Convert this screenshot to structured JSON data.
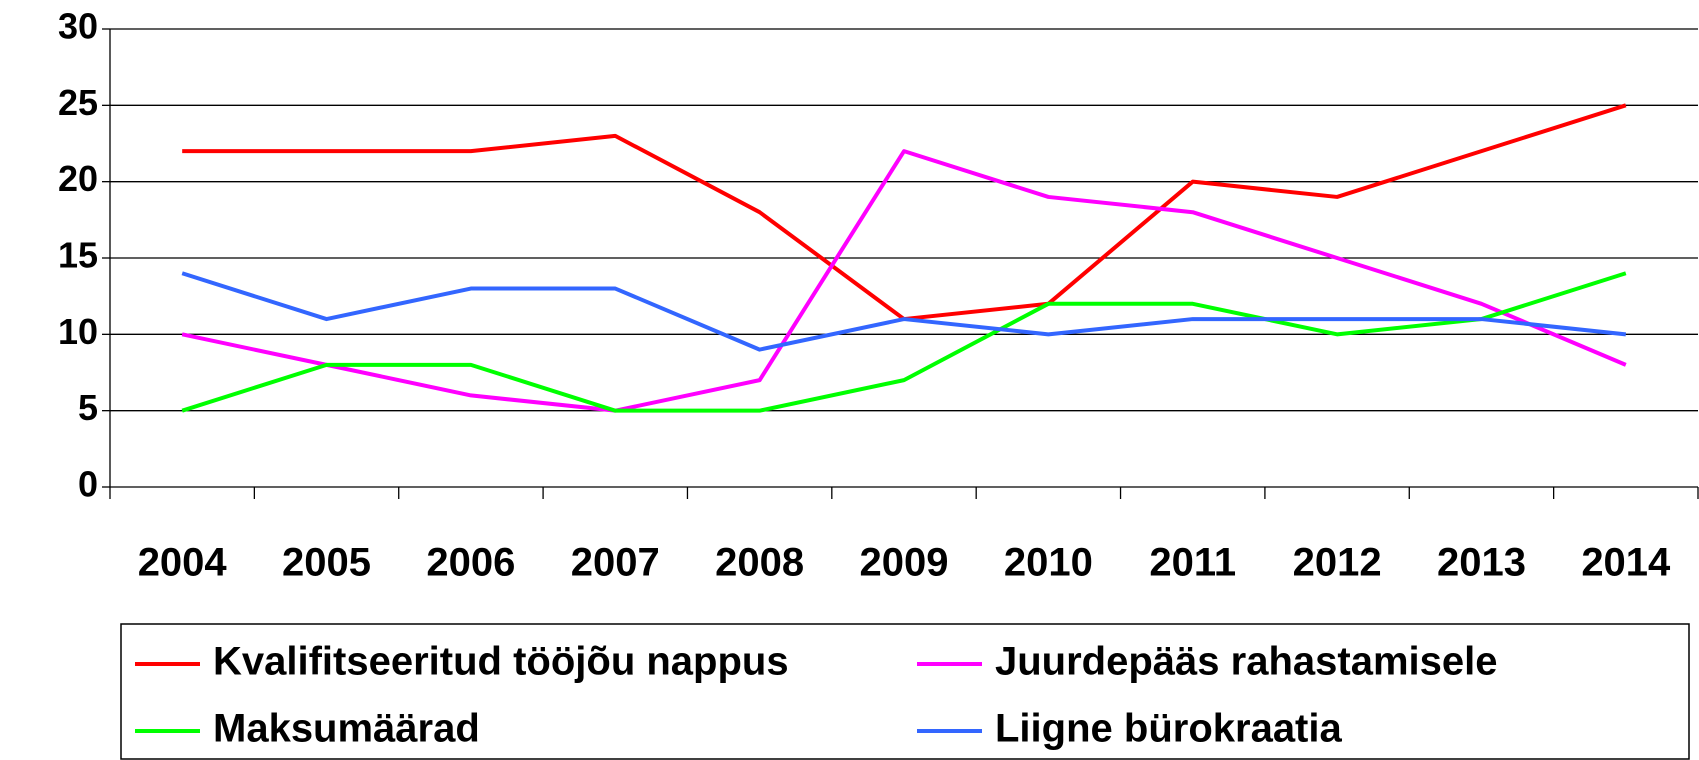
{
  "chart_data": {
    "type": "line",
    "categories": [
      "2004",
      "2005",
      "2006",
      "2007",
      "2008",
      "2009",
      "2010",
      "2011",
      "2012",
      "2013",
      "2014"
    ],
    "series": [
      {
        "name": "Kvalifitseeritud tööjõu nappus",
        "color": "#ff0000",
        "values": [
          22,
          22,
          22,
          23,
          18,
          11,
          12,
          20,
          19,
          22,
          25
        ]
      },
      {
        "name": "Juurdepääs rahastamisele",
        "color": "#ff00ff",
        "values": [
          10,
          8,
          6,
          5,
          7,
          22,
          19,
          18,
          15,
          12,
          8
        ]
      },
      {
        "name": "Maksumäärad",
        "color": "#00ff00",
        "values": [
          5,
          8,
          8,
          5,
          5,
          7,
          12,
          12,
          10,
          11,
          14
        ]
      },
      {
        "name": "Liigne bürokraatia",
        "color": "#3366ff",
        "values": [
          14,
          11,
          13,
          13,
          9,
          11,
          10,
          11,
          11,
          11,
          10
        ]
      }
    ],
    "ylim": [
      0,
      30
    ],
    "yticks": [
      0,
      5,
      10,
      15,
      20,
      25,
      30
    ],
    "grid": true,
    "legend": "bottom"
  }
}
